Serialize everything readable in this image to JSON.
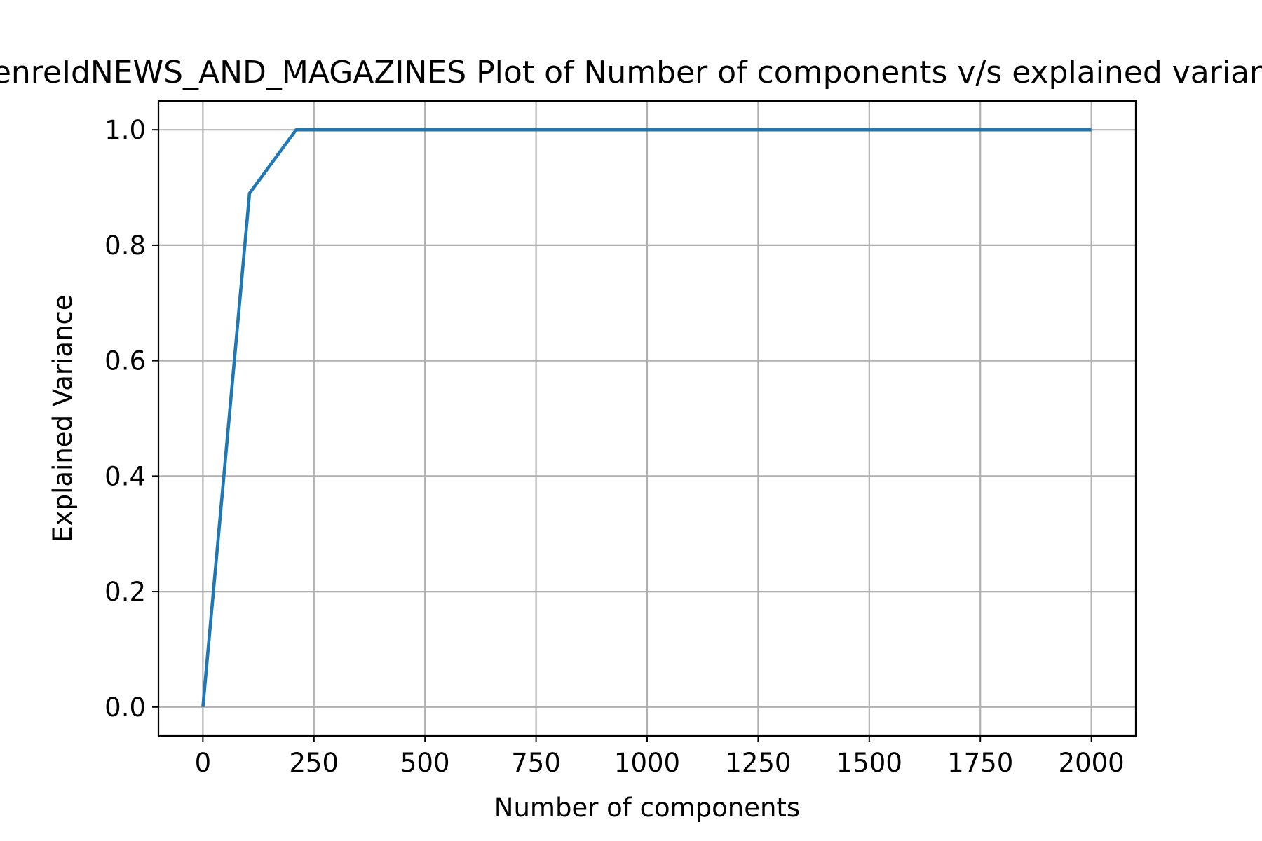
{
  "chart_data": {
    "type": "line",
    "title": "enreIdNEWS_AND_MAGAZINES Plot of Number of components v/s explained variance",
    "xlabel": "Number of components",
    "ylabel": "Explained Variance",
    "xlim": [
      -100,
      2100
    ],
    "ylim": [
      -0.05,
      1.05
    ],
    "xticks": [
      0,
      250,
      500,
      750,
      1000,
      1250,
      1500,
      1750,
      2000
    ],
    "yticks": [
      0.0,
      0.2,
      0.4,
      0.6,
      0.8,
      1.0
    ],
    "xtick_labels": [
      "0",
      "250",
      "500",
      "750",
      "1000",
      "1250",
      "1500",
      "1750",
      "2000"
    ],
    "ytick_labels": [
      "0.0",
      "0.2",
      "0.4",
      "0.6",
      "0.8",
      "1.0"
    ],
    "grid": true,
    "series": [
      {
        "color": "#1f77b4",
        "x": [
          0,
          105,
          210,
          2000
        ],
        "y": [
          0.0,
          0.89,
          1.0,
          1.0
        ]
      }
    ]
  }
}
